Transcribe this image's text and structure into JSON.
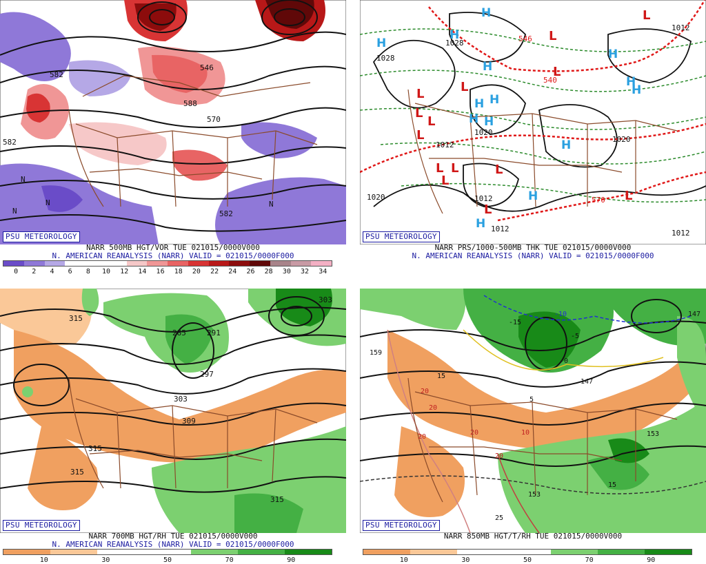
{
  "logo": "PSU METEOROLOGY",
  "panels": [
    {
      "title": "NARR 500MB HGT/VOR TUE 021015/0000V000",
      "subtitle": "N. AMERICAN REANALYSIS (NARR) VALID = 021015/0000F000",
      "colors": [
        "#6a4cc8",
        "#8f78d8",
        "#b5a8e6",
        "#ffffff",
        "#ffffff",
        "#ffffff",
        "#f6c8c8",
        "#f09696",
        "#e86464",
        "#d83434",
        "#b81818",
        "#8c0c0c",
        "#600808",
        "#a8848a",
        "#c89aa4",
        "#f4b0c4"
      ],
      "ticks": [
        "0",
        "2",
        "4",
        "6",
        "8",
        "10",
        "12",
        "14",
        "16",
        "18",
        "20",
        "22",
        "24",
        "26",
        "28",
        "30",
        "32",
        "34"
      ],
      "labels": [
        "582",
        "546",
        "582",
        "570",
        "N",
        "N",
        "N",
        "N",
        "582",
        "588"
      ]
    },
    {
      "title": "NARR PRS/1000-500MB THK TUE 021015/0000V000",
      "subtitle": "N. AMERICAN REANALYSIS (NARR) VALID = 021015/0000F000",
      "high_color": "#2aa0e0",
      "low_color": "#d01818",
      "labels": [
        "1028",
        "1028",
        "1012",
        "1020",
        "1012",
        "1012",
        "1020",
        "1020",
        "1012",
        "1012",
        "540",
        "570",
        "546"
      ]
    },
    {
      "title": "NARR 700MB HGT/RH TUE 021015/0000V000",
      "subtitle": "N. AMERICAN REANALYSIS (NARR) VALID = 021015/0000F000",
      "colors": [
        "#f0a060",
        "#fac898",
        "#ffffff",
        "#ffffff",
        "#7cd070",
        "#44b044",
        "#188a18"
      ],
      "ticks": [
        "10",
        "30",
        "50",
        "70",
        "90"
      ],
      "labels": [
        "315",
        "285",
        "291",
        "297",
        "303",
        "309",
        "315",
        "315",
        "315",
        "303"
      ]
    },
    {
      "title": "NARR 850MB HGT/T/RH TUE 021015/0000V000",
      "subtitle": "",
      "colors": [
        "#f0a060",
        "#fac898",
        "#ffffff",
        "#ffffff",
        "#7cd070",
        "#44b044",
        "#188a18"
      ],
      "ticks": [
        "10",
        "30",
        "50",
        "70",
        "90"
      ],
      "labels": [
        "159",
        "15",
        "20",
        "20",
        "20",
        "20",
        "10",
        "20",
        "5",
        "-15",
        "-10",
        "-5",
        "0",
        "147",
        "153",
        "153",
        "15",
        "25",
        "147"
      ]
    }
  ]
}
